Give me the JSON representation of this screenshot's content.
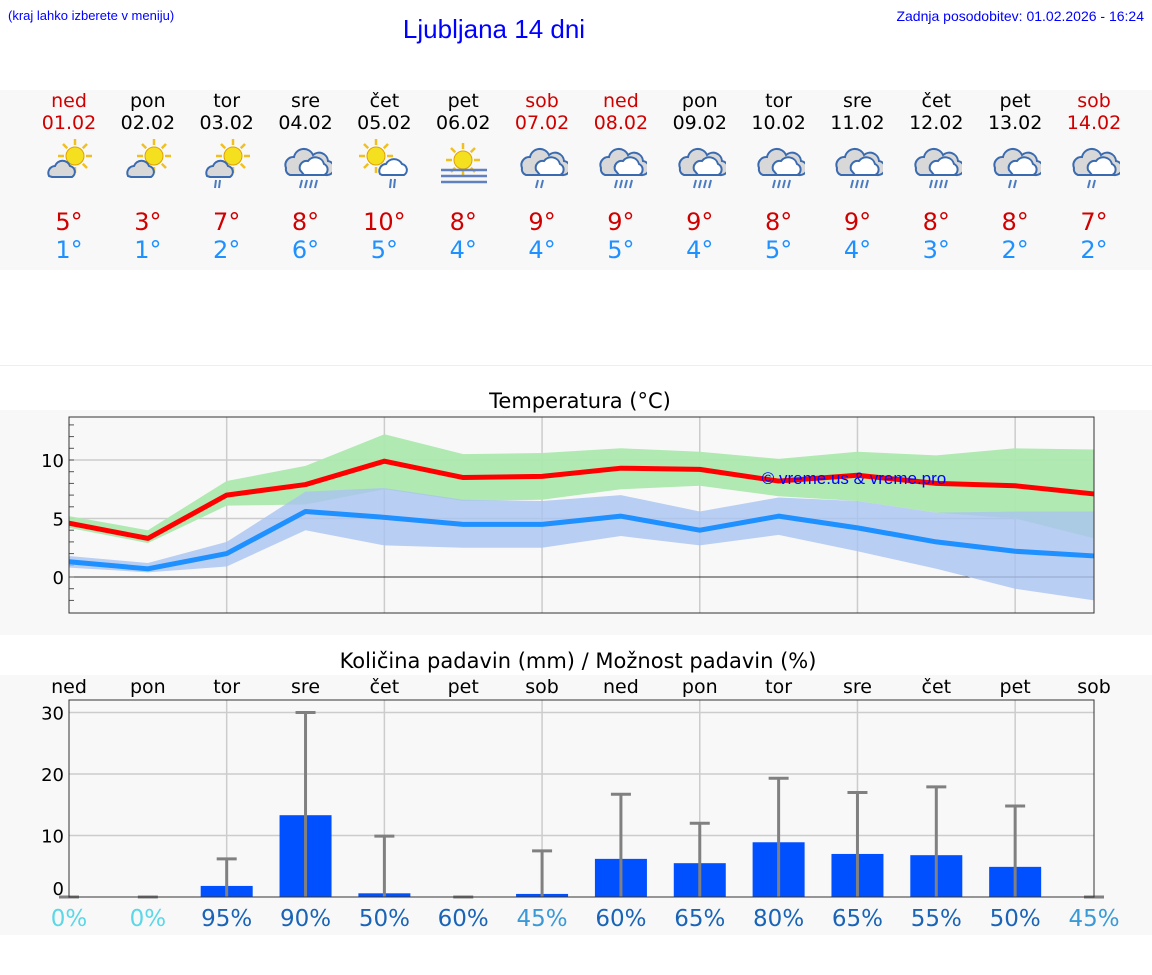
{
  "header": {
    "hint": "(kraj lahko izberete v meniju)",
    "title": "Ljubljana 14 dni",
    "updated": "Zadnja posodobitev: 01.02.2026 - 16:24"
  },
  "days": [
    {
      "name": "ned",
      "date": "01.02",
      "icon": "partly-cloudy",
      "max": "5°",
      "min": "1°",
      "weekend": true
    },
    {
      "name": "pon",
      "date": "02.02",
      "icon": "partly-cloudy",
      "max": "3°",
      "min": "1°",
      "weekend": false
    },
    {
      "name": "tor",
      "date": "03.02",
      "icon": "partly-cloudy-light-rain",
      "max": "7°",
      "min": "2°",
      "weekend": false
    },
    {
      "name": "sre",
      "date": "04.02",
      "icon": "cloudy-rain",
      "max": "8°",
      "min": "6°",
      "weekend": false
    },
    {
      "name": "čet",
      "date": "05.02",
      "icon": "sun-cloud-light-rain",
      "max": "10°",
      "min": "5°",
      "weekend": false
    },
    {
      "name": "pet",
      "date": "06.02",
      "icon": "sun-fog",
      "max": "8°",
      "min": "4°",
      "weekend": false
    },
    {
      "name": "sob",
      "date": "07.02",
      "icon": "cloudy-light-rain",
      "max": "9°",
      "min": "4°",
      "weekend": true
    },
    {
      "name": "ned",
      "date": "08.02",
      "icon": "cloudy-rain",
      "max": "9°",
      "min": "5°",
      "weekend": true
    },
    {
      "name": "pon",
      "date": "09.02",
      "icon": "cloudy-rain",
      "max": "9°",
      "min": "4°",
      "weekend": false
    },
    {
      "name": "tor",
      "date": "10.02",
      "icon": "cloudy-rain",
      "max": "8°",
      "min": "5°",
      "weekend": false
    },
    {
      "name": "sre",
      "date": "11.02",
      "icon": "cloudy-rain",
      "max": "9°",
      "min": "4°",
      "weekend": false
    },
    {
      "name": "čet",
      "date": "12.02",
      "icon": "cloudy-rain",
      "max": "8°",
      "min": "3°",
      "weekend": false
    },
    {
      "name": "pet",
      "date": "13.02",
      "icon": "cloudy-light-rain",
      "max": "8°",
      "min": "2°",
      "weekend": false
    },
    {
      "name": "sob",
      "date": "14.02",
      "icon": "cloudy-light-rain",
      "max": "7°",
      "min": "2°",
      "weekend": true
    }
  ],
  "colors": {
    "max": "#ff0000",
    "min": "#1e90ff",
    "maxband": "#acE8AE",
    "minband": "#aac4f2",
    "bar": "#0050ff",
    "err": "#808080"
  },
  "chart_data": [
    {
      "type": "line",
      "title": "Temperatura (°C)",
      "yticks": [
        "0",
        "5",
        "10"
      ],
      "ylim": [
        -3,
        13.5
      ],
      "x": [
        "01.02",
        "02.02",
        "03.02",
        "04.02",
        "05.02",
        "06.02",
        "07.02",
        "08.02",
        "09.02",
        "10.02",
        "11.02",
        "12.02",
        "13.02",
        "14.02"
      ],
      "watermark": "© vreme.us & vreme.pro",
      "series": [
        {
          "name": "max",
          "values": [
            4.6,
            3.3,
            7.0,
            7.9,
            9.9,
            8.5,
            8.6,
            9.3,
            9.2,
            8.2,
            8.7,
            8.0,
            7.8,
            7.1
          ],
          "band_low": [
            4.2,
            2.9,
            6.1,
            6.2,
            7.5,
            6.5,
            6.6,
            7.5,
            7.8,
            6.9,
            6.5,
            5.5,
            5.0,
            3.3
          ],
          "band_high": [
            5.2,
            4.0,
            8.2,
            9.5,
            12.2,
            10.5,
            10.6,
            11.0,
            10.7,
            10.1,
            10.7,
            10.4,
            11.0,
            10.9
          ]
        },
        {
          "name": "min",
          "values": [
            1.3,
            0.7,
            2.0,
            5.6,
            5.1,
            4.5,
            4.5,
            5.2,
            4.0,
            5.2,
            4.2,
            3.0,
            2.2,
            1.8
          ],
          "band_low": [
            0.8,
            0.4,
            0.9,
            4.0,
            2.7,
            2.5,
            2.5,
            3.5,
            2.7,
            3.6,
            2.2,
            0.7,
            -1.0,
            -2.0
          ],
          "band_high": [
            1.8,
            1.2,
            3.0,
            7.3,
            7.6,
            6.6,
            6.5,
            7.0,
            5.6,
            6.8,
            6.5,
            5.5,
            5.6,
            5.6
          ]
        }
      ]
    },
    {
      "type": "bar",
      "title": "Količina padavin (mm) / Možnost padavin (%)",
      "categories": [
        "ned",
        "pon",
        "tor",
        "sre",
        "čet",
        "pet",
        "sob",
        "ned",
        "pon",
        "tor",
        "sre",
        "čet",
        "pet",
        "sob"
      ],
      "yticks": [
        "0",
        "10",
        "20",
        "30"
      ],
      "ylim": [
        0,
        32
      ],
      "values": [
        0,
        0,
        1.8,
        13.3,
        0.6,
        0,
        0.5,
        6.2,
        5.5,
        8.9,
        7.0,
        6.8,
        4.9,
        0
      ],
      "error_high": [
        0,
        0,
        6.2,
        30,
        9.9,
        0,
        7.5,
        16.7,
        12,
        19.3,
        17,
        17.9,
        14.8,
        0
      ],
      "probability": [
        "0%",
        "0%",
        "95%",
        "90%",
        "50%",
        "60%",
        "45%",
        "60%",
        "65%",
        "80%",
        "65%",
        "55%",
        "50%",
        "45%"
      ],
      "probability_colors": [
        "#5ad8e8",
        "#5ad8e8",
        "#1a64b8",
        "#1a64b8",
        "#1a64b8",
        "#1a64b8",
        "#3a9ad8",
        "#1a64b8",
        "#1a64b8",
        "#1a64b8",
        "#1a64b8",
        "#1a64b8",
        "#1a64b8",
        "#3a9ad8"
      ]
    }
  ]
}
